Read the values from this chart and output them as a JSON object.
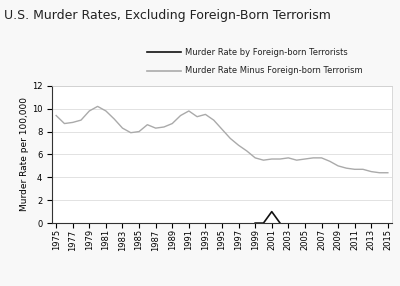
{
  "title": "U.S. Murder Rates, Excluding Foreign-Born Terrorism",
  "ylabel": "Murder Rate per 100,000",
  "ylim": [
    0,
    12
  ],
  "yticks": [
    0,
    2,
    4,
    6,
    8,
    10,
    12
  ],
  "bg_color": "#f8f8f8",
  "plot_bg_color": "#ffffff",
  "gray_line_color": "#aaaaaa",
  "black_line_color": "#111111",
  "legend_label_black": "Murder Rate by Foreign-born Terrorists",
  "legend_label_gray": "Murder Rate Minus Foreign-born Terrorism",
  "years_gray": [
    1975,
    1976,
    1977,
    1978,
    1979,
    1980,
    1981,
    1982,
    1983,
    1984,
    1985,
    1986,
    1987,
    1988,
    1989,
    1990,
    1991,
    1992,
    1993,
    1994,
    1995,
    1996,
    1997,
    1998,
    1999,
    2000,
    2001,
    2002,
    2003,
    2004,
    2005,
    2006,
    2007,
    2008,
    2009,
    2010,
    2011,
    2012,
    2013,
    2014,
    2015
  ],
  "values_gray": [
    9.4,
    8.7,
    8.8,
    9.0,
    9.8,
    10.2,
    9.8,
    9.1,
    8.3,
    7.9,
    8.0,
    8.6,
    8.3,
    8.4,
    8.7,
    9.4,
    9.8,
    9.3,
    9.5,
    9.0,
    8.2,
    7.4,
    6.8,
    6.3,
    5.7,
    5.5,
    5.6,
    5.6,
    5.7,
    5.5,
    5.6,
    5.7,
    5.7,
    5.4,
    5.0,
    4.8,
    4.7,
    4.7,
    4.5,
    4.4,
    4.4
  ],
  "years_black": [
    1999,
    2000,
    2001,
    2002
  ],
  "values_black": [
    0.0,
    0.0,
    1.0,
    0.0
  ],
  "xtick_years": [
    1975,
    1977,
    1979,
    1981,
    1983,
    1985,
    1987,
    1989,
    1991,
    1993,
    1995,
    1997,
    1999,
    2001,
    2003,
    2005,
    2007,
    2009,
    2011,
    2013,
    2015
  ],
  "title_fontsize": 9,
  "axis_fontsize": 6.5,
  "tick_fontsize": 6,
  "legend_fontsize": 6
}
